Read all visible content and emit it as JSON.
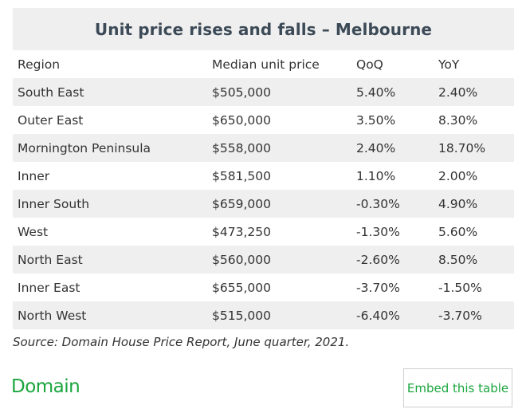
{
  "title": "Unit price rises and falls – Melbourne",
  "table": {
    "headers": [
      "Region",
      "Median unit price",
      "QoQ",
      "YoY"
    ],
    "rows": [
      [
        "South East",
        "$505,000",
        "5.40%",
        "2.40%"
      ],
      [
        "Outer East",
        "$650,000",
        "3.50%",
        "8.30%"
      ],
      [
        "Mornington Peninsula",
        "$558,000",
        "2.40%",
        "18.70%"
      ],
      [
        "Inner",
        "$581,500",
        "1.10%",
        "2.00%"
      ],
      [
        "Inner South",
        "$659,000",
        "-0.30%",
        "4.90%"
      ],
      [
        "West",
        "$473,250",
        "-1.30%",
        "5.60%"
      ],
      [
        "North East",
        "$560,000",
        "-2.60%",
        "8.50%"
      ],
      [
        "Inner East",
        "$655,000",
        "-3.70%",
        "-1.50%"
      ],
      [
        "North West",
        "$515,000",
        "-6.40%",
        "-3.70%"
      ]
    ]
  },
  "source": "Source: Domain House Price Report, June quarter, 2021.",
  "logo_text": "Domain",
  "embed_label": "Embed this table",
  "colors": {
    "brand": "#1ba63e",
    "title": "#3c4a57",
    "stripe": "#efefef"
  }
}
